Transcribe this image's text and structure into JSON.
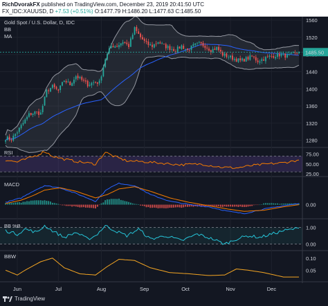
{
  "header": {
    "user": "RichDvorakFX",
    "published": "published on TradingView.com, December 23, 2019 20:41:50 UTC",
    "symbol": "FX_IDC:XAUUSD, D",
    "change": "+7.53 (+0.51%)",
    "ohlc": "O:1477.79 H:1486.20 L:1477.63 C:1485.50"
  },
  "chart_title": "Gold Spot / U.S. Dollar, D, IDC",
  "indicators": [
    "BB",
    "MA"
  ],
  "footer": {
    "brand": "TradingView"
  },
  "colors": {
    "up": "#26a69a",
    "down": "#ef5350",
    "bb": "#9598a1",
    "ma": "#2962ff",
    "rsi": "#f57c00",
    "macd": "#2962ff",
    "signal": "#f57c00",
    "bbpct": "#26c6da",
    "bbw": "#f5a623",
    "last_price_tag": "#26a69a"
  },
  "chart_data": [
    {
      "type": "candlestick",
      "title": "Gold Spot / U.S. Dollar, D, IDC",
      "ylim": [
        1265,
        1565
      ],
      "yticks": [
        1560,
        1520,
        1480,
        1440,
        1400,
        1360,
        1320,
        1280
      ],
      "last_price": "1485.50",
      "close_keypoints": [
        [
          0,
          1285
        ],
        [
          3,
          1283
        ],
        [
          6,
          1300
        ],
        [
          9,
          1320
        ],
        [
          12,
          1340
        ],
        [
          15,
          1345
        ],
        [
          18,
          1343
        ],
        [
          21,
          1395
        ],
        [
          24,
          1405
        ],
        [
          27,
          1395
        ],
        [
          30,
          1420
        ],
        [
          33,
          1410
        ],
        [
          36,
          1430
        ],
        [
          39,
          1420
        ],
        [
          42,
          1410
        ],
        [
          45,
          1415
        ],
        [
          48,
          1415
        ],
        [
          51,
          1470
        ],
        [
          54,
          1500
        ],
        [
          57,
          1500
        ],
        [
          60,
          1510
        ],
        [
          63,
          1500
        ],
        [
          66,
          1540
        ],
        [
          69,
          1520
        ],
        [
          72,
          1505
        ],
        [
          75,
          1500
        ],
        [
          78,
          1510
        ],
        [
          81,
          1500
        ],
        [
          84,
          1495
        ],
        [
          87,
          1490
        ],
        [
          90,
          1500
        ],
        [
          93,
          1490
        ],
        [
          96,
          1500
        ],
        [
          99,
          1505
        ],
        [
          102,
          1500
        ],
        [
          105,
          1490
        ],
        [
          108,
          1495
        ],
        [
          111,
          1480
        ],
        [
          114,
          1475
        ],
        [
          117,
          1470
        ],
        [
          120,
          1465
        ],
        [
          123,
          1470
        ],
        [
          126,
          1475
        ],
        [
          129,
          1465
        ],
        [
          132,
          1470
        ],
        [
          135,
          1475
        ],
        [
          138,
          1478
        ],
        [
          141,
          1480
        ],
        [
          144,
          1476
        ],
        [
          147,
          1480
        ],
        [
          150,
          1485.5
        ]
      ],
      "series": [
        "Price",
        "BB upper",
        "BB basis",
        "BB lower",
        "MA"
      ]
    },
    {
      "type": "line",
      "title": "RSI",
      "ylim": [
        20,
        90
      ],
      "yticks": [
        "75.00",
        "50.00",
        "25.00"
      ],
      "bands": [
        30,
        70
      ],
      "keypoints": [
        [
          0,
          60
        ],
        [
          6,
          55
        ],
        [
          12,
          65
        ],
        [
          16,
          72
        ],
        [
          20,
          82
        ],
        [
          24,
          70
        ],
        [
          30,
          62
        ],
        [
          38,
          55
        ],
        [
          46,
          50
        ],
        [
          51,
          80
        ],
        [
          55,
          70
        ],
        [
          62,
          58
        ],
        [
          70,
          56
        ],
        [
          80,
          52
        ],
        [
          90,
          48
        ],
        [
          100,
          50
        ],
        [
          110,
          42
        ],
        [
          118,
          40
        ],
        [
          126,
          46
        ],
        [
          134,
          50
        ],
        [
          142,
          53
        ],
        [
          150,
          60
        ]
      ]
    },
    {
      "type": "macd",
      "title": "MACD",
      "ylim": [
        -12,
        22
      ],
      "yticks": [
        "0.00"
      ],
      "macd_keypoints": [
        [
          0,
          2
        ],
        [
          8,
          6
        ],
        [
          14,
          12
        ],
        [
          20,
          17
        ],
        [
          28,
          15
        ],
        [
          36,
          10
        ],
        [
          46,
          3
        ],
        [
          52,
          14
        ],
        [
          58,
          19
        ],
        [
          66,
          17
        ],
        [
          74,
          9
        ],
        [
          84,
          3
        ],
        [
          94,
          0
        ],
        [
          104,
          -2
        ],
        [
          114,
          -6
        ],
        [
          122,
          -8
        ],
        [
          132,
          -4
        ],
        [
          142,
          -1
        ],
        [
          150,
          1
        ]
      ],
      "signal_keypoints": [
        [
          0,
          1
        ],
        [
          8,
          4
        ],
        [
          14,
          8
        ],
        [
          20,
          13
        ],
        [
          28,
          15
        ],
        [
          36,
          12
        ],
        [
          46,
          6
        ],
        [
          52,
          9
        ],
        [
          58,
          14
        ],
        [
          66,
          16
        ],
        [
          74,
          12
        ],
        [
          84,
          6
        ],
        [
          94,
          2
        ],
        [
          104,
          -1
        ],
        [
          114,
          -4
        ],
        [
          122,
          -6
        ],
        [
          132,
          -5
        ],
        [
          142,
          -2
        ],
        [
          150,
          0
        ]
      ]
    },
    {
      "type": "line",
      "title": "BB %B",
      "ylim": [
        -0.35,
        1.35
      ],
      "yticks": [
        "1.00",
        "0.00"
      ],
      "keypoints": [
        [
          0,
          0.8
        ],
        [
          6,
          0.6
        ],
        [
          10,
          0.9
        ],
        [
          16,
          0.7
        ],
        [
          20,
          1.1
        ],
        [
          24,
          0.8
        ],
        [
          30,
          0.4
        ],
        [
          36,
          0.7
        ],
        [
          42,
          0.3
        ],
        [
          46,
          0.5
        ],
        [
          51,
          1.1
        ],
        [
          56,
          0.8
        ],
        [
          62,
          0.5
        ],
        [
          68,
          0.9
        ],
        [
          74,
          0.3
        ],
        [
          82,
          0.5
        ],
        [
          90,
          0.2
        ],
        [
          98,
          0.6
        ],
        [
          106,
          0.3
        ],
        [
          112,
          0.0
        ],
        [
          118,
          0.3
        ],
        [
          124,
          0.5
        ],
        [
          130,
          0.4
        ],
        [
          136,
          0.6
        ],
        [
          142,
          0.8
        ],
        [
          150,
          0.95
        ]
      ]
    },
    {
      "type": "line",
      "title": "BBW",
      "ylim": [
        0.005,
        0.125
      ],
      "yticks": [
        "0.10",
        "0.05"
      ],
      "keypoints": [
        [
          0,
          0.05
        ],
        [
          6,
          0.03
        ],
        [
          10,
          0.05
        ],
        [
          18,
          0.085
        ],
        [
          24,
          0.1
        ],
        [
          30,
          0.06
        ],
        [
          38,
          0.035
        ],
        [
          46,
          0.03
        ],
        [
          52,
          0.065
        ],
        [
          58,
          0.095
        ],
        [
          66,
          0.09
        ],
        [
          74,
          0.06
        ],
        [
          84,
          0.04
        ],
        [
          94,
          0.035
        ],
        [
          104,
          0.028
        ],
        [
          112,
          0.03
        ],
        [
          118,
          0.055
        ],
        [
          124,
          0.05
        ],
        [
          132,
          0.04
        ],
        [
          142,
          0.022
        ],
        [
          150,
          0.022
        ]
      ]
    }
  ],
  "x_axis": {
    "labels": [
      {
        "text": "Jun",
        "idx": 6
      },
      {
        "text": "Jul",
        "idx": 27
      },
      {
        "text": "Aug",
        "idx": 49
      },
      {
        "text": "Sep",
        "idx": 71
      },
      {
        "text": "Oct",
        "idx": 92
      },
      {
        "text": "Nov",
        "idx": 115
      },
      {
        "text": "Dec",
        "idx": 136
      }
    ]
  }
}
